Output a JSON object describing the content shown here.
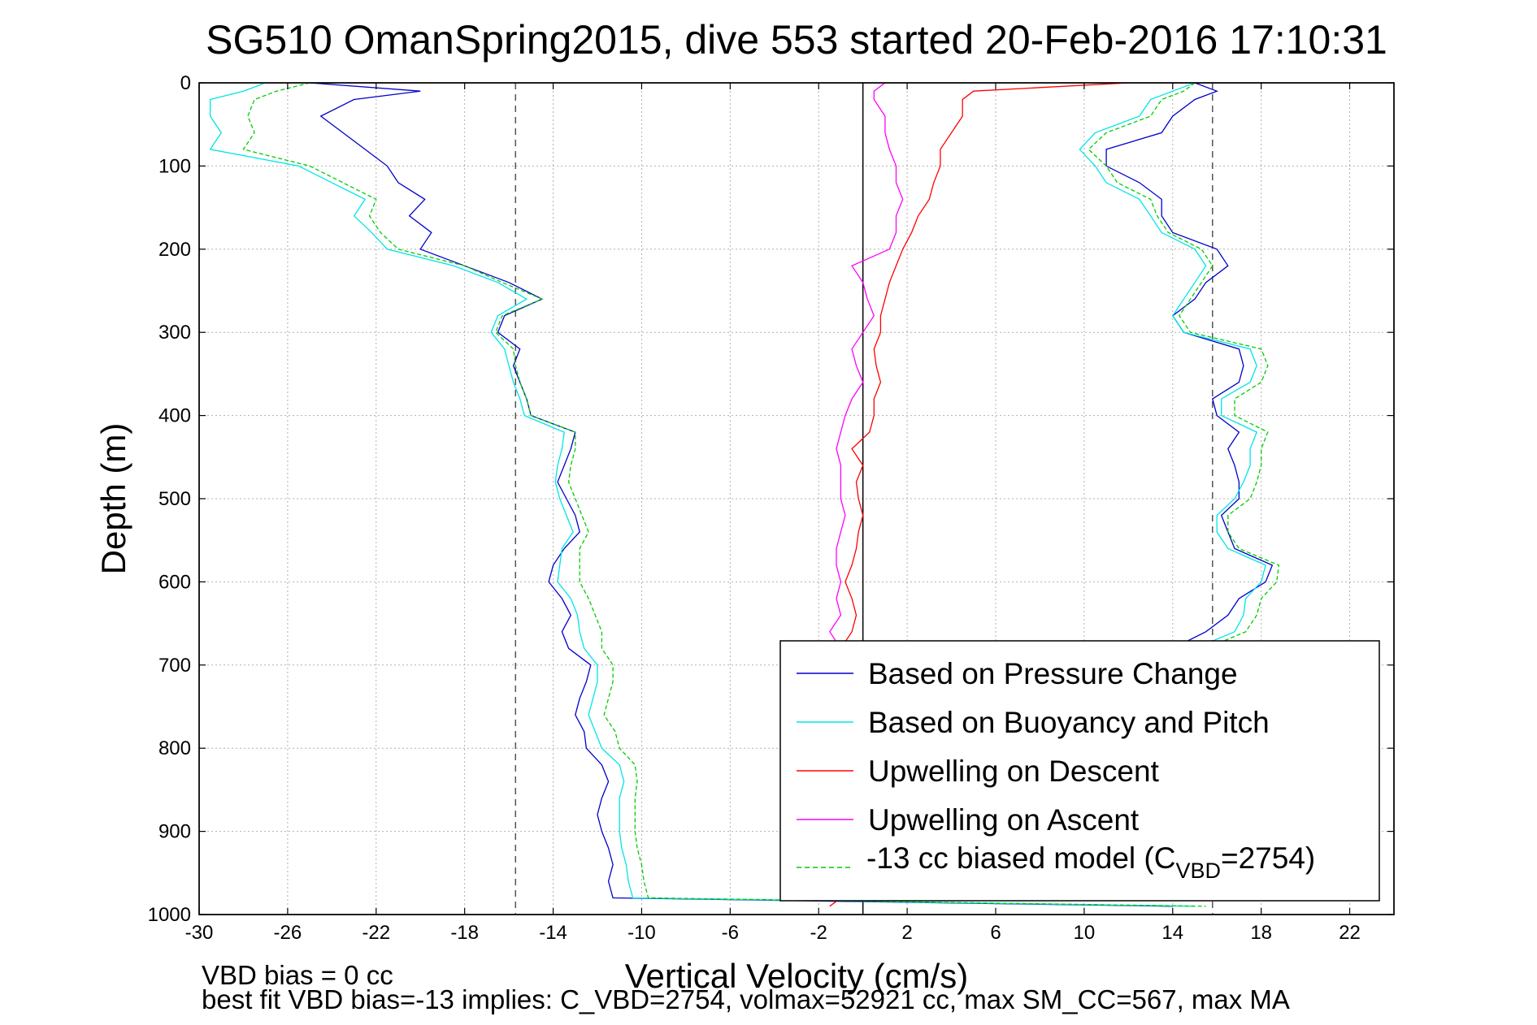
{
  "chart_data": {
    "type": "line",
    "title": "SG510 OmanSpring2015, dive 553 started 20-Feb-2016 17:10:31",
    "xlabel": "Vertical Velocity (cm/s)",
    "ylabel": "Depth (m)",
    "xlim": [
      -30,
      24
    ],
    "ylim": [
      0,
      1000
    ],
    "y_reversed": true,
    "x_ticks": [
      -30,
      -26,
      -22,
      -18,
      -14,
      -10,
      -6,
      -2,
      2,
      6,
      10,
      14,
      18,
      22
    ],
    "y_ticks": [
      0,
      100,
      200,
      300,
      400,
      500,
      600,
      700,
      800,
      900,
      1000
    ],
    "grid": true,
    "legend_position": "bottom-right",
    "reference_lines": [
      {
        "x": -15.7,
        "style": "dashed",
        "color": "#555555"
      },
      {
        "x": 0,
        "style": "solid",
        "color": "#000000"
      },
      {
        "x": 15.8,
        "style": "dashed",
        "color": "#555555"
      }
    ],
    "series": [
      {
        "name": "Based on Pressure Change",
        "color": "#0000cc",
        "style": "solid",
        "profiles": [
          {
            "depth": [
              0,
              10,
              20,
              40,
              60,
              80,
              100,
              120,
              140,
              160,
              180,
              200,
              220,
              240,
              260,
              280,
              300,
              320,
              340,
              360,
              380,
              400,
              420,
              440,
              460,
              480,
              500,
              520,
              540,
              560,
              580,
              600,
              620,
              640,
              660,
              680,
              700,
              720,
              740,
              760,
              780,
              800,
              820,
              840,
              860,
              880,
              900,
              920,
              940,
              960,
              980,
              990
            ],
            "velocity": [
              -25,
              -20,
              -23,
              -24.5,
              -23.5,
              -22.5,
              -21.5,
              -21,
              -19.8,
              -20.5,
              -19.5,
              -20,
              -18,
              -16,
              -14.5,
              -16.2,
              -16.5,
              -15.5,
              -15.8,
              -15.5,
              -15.2,
              -15,
              -13,
              -13.2,
              -13.5,
              -13.8,
              -13.4,
              -13,
              -12.8,
              -13.5,
              -14,
              -14.2,
              -13.6,
              -13.2,
              -13.6,
              -13.3,
              -12.3,
              -12.5,
              -12.8,
              -13,
              -12.6,
              -12.5,
              -11.8,
              -11.5,
              -11.8,
              -12,
              -11.8,
              -11.5,
              -11.3,
              -11.5,
              -11.3,
              14
            ]
          },
          {
            "depth": [
              0,
              10,
              20,
              40,
              60,
              80,
              100,
              120,
              140,
              160,
              180,
              200,
              220,
              240,
              260,
              280,
              300,
              320,
              340,
              360,
              380,
              400,
              420,
              440,
              460,
              480,
              500,
              520,
              540,
              560,
              580,
              600,
              620,
              640,
              660,
              680,
              700
            ],
            "velocity": [
              15,
              16,
              15,
              14,
              13.5,
              11,
              11,
              12.5,
              13.5,
              13.5,
              14,
              16,
              16.5,
              15.5,
              15,
              14,
              14.5,
              17,
              17.2,
              17,
              15.8,
              16,
              17,
              16.5,
              16.8,
              17,
              17,
              16.2,
              16.5,
              16.8,
              18.5,
              18.2,
              17,
              16.5,
              15.5,
              14,
              14
            ]
          }
        ]
      },
      {
        "name": "Based on Buoyancy and Pitch",
        "color": "#00e5e5",
        "style": "solid",
        "profiles": [
          {
            "depth": [
              0,
              10,
              20,
              40,
              60,
              80,
              100,
              120,
              140,
              160,
              180,
              200,
              220,
              240,
              260,
              280,
              300,
              320,
              340,
              360,
              380,
              400,
              420,
              440,
              460,
              480,
              500,
              520,
              540,
              560,
              580,
              600,
              620,
              640,
              660,
              680,
              700,
              720,
              740,
              760,
              780,
              800,
              820,
              840,
              860,
              880,
              900,
              920,
              940,
              960,
              980,
              990
            ],
            "velocity": [
              -27,
              -28,
              -29.5,
              -29.5,
              -29,
              -29.5,
              -25.5,
              -24,
              -22.5,
              -23,
              -22.2,
              -21.5,
              -18.5,
              -16.5,
              -15.2,
              -16.5,
              -16.8,
              -16.2,
              -16,
              -15.8,
              -15.5,
              -15.3,
              -13.5,
              -13.6,
              -13.8,
              -13.9,
              -13.7,
              -13.4,
              -13.1,
              -13.6,
              -13.7,
              -13.8,
              -13.2,
              -12.9,
              -12.8,
              -12.6,
              -12,
              -12,
              -12.2,
              -12.4,
              -12.1,
              -11.8,
              -11,
              -10.8,
              -11,
              -11,
              -11,
              -10.9,
              -10.7,
              -10.6,
              -10.4,
              15
            ]
          },
          {
            "depth": [
              0,
              10,
              20,
              40,
              60,
              80,
              100,
              120,
              140,
              160,
              180,
              200,
              220,
              240,
              260,
              280,
              300,
              320,
              340,
              360,
              380,
              400,
              420,
              440,
              460,
              480,
              500,
              520,
              540,
              560,
              580,
              600,
              620,
              640,
              660,
              680,
              700
            ],
            "velocity": [
              15,
              14,
              13,
              12.5,
              10.5,
              9.8,
              10.5,
              11,
              12.5,
              13,
              13.5,
              15,
              15.5,
              15,
              14.5,
              14,
              14.5,
              17.5,
              17.8,
              17.5,
              16.2,
              16.2,
              17.8,
              17.5,
              17.5,
              17.2,
              16.8,
              16,
              16,
              16.5,
              18.2,
              18,
              17.3,
              17.2,
              16.8,
              15,
              14.5
            ]
          }
        ]
      },
      {
        "name": "Upwelling on Descent",
        "color": "#ff0000",
        "style": "solid",
        "profiles": [
          {
            "depth": [
              0,
              10,
              20,
              40,
              60,
              80,
              100,
              120,
              140,
              160,
              180,
              200,
              220,
              240,
              260,
              280,
              300,
              320,
              340,
              360,
              380,
              400,
              420,
              440,
              460,
              480,
              500,
              520,
              540,
              560,
              580,
              600,
              620,
              640,
              660,
              680,
              700,
              720,
              740,
              760,
              780,
              800,
              820,
              840,
              860,
              880,
              900,
              920,
              940,
              960,
              980,
              990
            ],
            "velocity": [
              12,
              5,
              4.5,
              4.5,
              4,
              3.5,
              3.5,
              3.2,
              3,
              2.5,
              2.2,
              1.8,
              1.5,
              1.2,
              1,
              0.8,
              0.8,
              0.5,
              0.6,
              0.8,
              0.5,
              0.5,
              0.3,
              -0.5,
              0,
              -0.3,
              -0.2,
              0,
              -0.2,
              -0.3,
              -0.5,
              -0.8,
              -0.5,
              -0.3,
              -0.5,
              -1,
              -1,
              -1,
              -1,
              -1,
              -1,
              -1,
              -1,
              -1,
              -1,
              -1,
              -1,
              -1,
              -1,
              -1,
              -1,
              -1.5
            ]
          }
        ]
      },
      {
        "name": "Upwelling on Ascent",
        "color": "#ff00ff",
        "style": "solid",
        "profiles": [
          {
            "depth": [
              0,
              10,
              20,
              40,
              60,
              80,
              100,
              120,
              140,
              160,
              180,
              200,
              220,
              240,
              260,
              280,
              300,
              320,
              340,
              360,
              380,
              400,
              420,
              440,
              460,
              480,
              500,
              520,
              540,
              560,
              580,
              600,
              620,
              640,
              660,
              680,
              700
            ],
            "velocity": [
              1,
              0.5,
              0.5,
              1,
              1,
              1.2,
              1.5,
              1.5,
              1.8,
              1.5,
              1.5,
              1.2,
              -0.5,
              0,
              0.2,
              0.5,
              0,
              -0.5,
              -0.3,
              0,
              -0.5,
              -0.8,
              -1,
              -1.2,
              -1,
              -1,
              -1,
              -0.8,
              -1,
              -1.2,
              -1.2,
              -1,
              -1.2,
              -1,
              -1.5,
              -1,
              -1
            ]
          }
        ]
      },
      {
        "name": "-13 cc biased model (C",
        "color": "#00cc00",
        "style": "dashed",
        "profiles": [
          {
            "depth": [
              0,
              10,
              20,
              40,
              60,
              80,
              100,
              120,
              140,
              160,
              180,
              200,
              220,
              240,
              260,
              280,
              300,
              320,
              340,
              360,
              380,
              400,
              420,
              440,
              460,
              480,
              500,
              520,
              540,
              560,
              580,
              600,
              620,
              640,
              660,
              680,
              700,
              720,
              740,
              760,
              780,
              800,
              820,
              840,
              860,
              880,
              900,
              920,
              940,
              960,
              980,
              990
            ],
            "velocity": [
              -25,
              -26.5,
              -27.5,
              -27.8,
              -27.5,
              -28,
              -25,
              -23.5,
              -22,
              -22.3,
              -21.8,
              -21,
              -18,
              -16.3,
              -14.5,
              -16.3,
              -16.6,
              -15.8,
              -15.7,
              -15.5,
              -15.2,
              -15,
              -13,
              -13,
              -13.2,
              -13.3,
              -13,
              -12.7,
              -12.4,
              -12.8,
              -12.8,
              -12.8,
              -12.4,
              -12.1,
              -11.8,
              -11.8,
              -11.3,
              -11.3,
              -11.5,
              -11.7,
              -11.2,
              -11,
              -10.3,
              -10.2,
              -10.3,
              -10.3,
              -10.3,
              -10.2,
              -10,
              -9.9,
              -9.7,
              15.5
            ]
          },
          {
            "depth": [
              0,
              10,
              20,
              40,
              60,
              80,
              100,
              120,
              140,
              160,
              180,
              200,
              220,
              240,
              260,
              280,
              300,
              320,
              340,
              360,
              380,
              400,
              420,
              440,
              460,
              480,
              500,
              520,
              540,
              560,
              580,
              600,
              620,
              640,
              660,
              680,
              700
            ],
            "velocity": [
              15,
              14.5,
              13.5,
              13,
              11,
              10.2,
              11,
              11.5,
              13,
              13.3,
              13.8,
              15.3,
              15.8,
              15.3,
              14.8,
              14.3,
              14.8,
              18,
              18.3,
              18,
              16.8,
              16.8,
              18.3,
              18,
              18,
              17.8,
              17.5,
              16.5,
              16.5,
              17,
              18.8,
              18.7,
              18,
              17.8,
              17.3,
              15.5,
              15
            ]
          }
        ]
      }
    ],
    "legend": [
      {
        "label": "Based on Pressure Change"
      },
      {
        "label": "Based on Buoyancy and Pitch"
      },
      {
        "label": "Upwelling on Descent"
      },
      {
        "label": "Upwelling on Ascent"
      },
      {
        "label": "-13 cc biased model (C",
        "sub": "VBD",
        "suffix": "=2754)"
      }
    ],
    "notes": [
      "VBD bias = 0 cc",
      "best fit VBD bias=-13 implies: C_VBD=2754, volmax=52921 cc, max SM_CC=567, max MA"
    ]
  }
}
